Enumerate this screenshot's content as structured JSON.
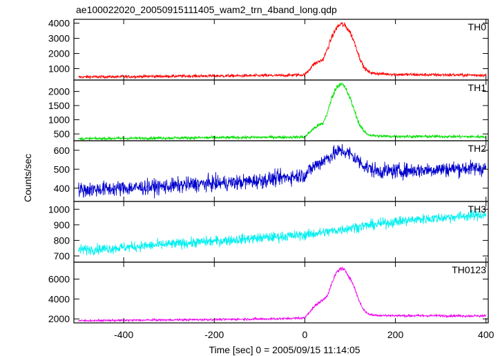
{
  "chart_data": {
    "type": "line",
    "title": "ae100022020_20050915111405_wam2_trn_4band_long.qdp",
    "xlabel": "Time [sec] 0 = 2005/09/15 11:14:05",
    "ylabel": "Counts/sec",
    "xlim": [
      -510,
      405
    ],
    "x_ticks": [
      -400,
      -200,
      0,
      200,
      400
    ],
    "grid": false,
    "panels": [
      {
        "name": "TH0",
        "color": "#ff0000",
        "ylim": [
          250,
          4250
        ],
        "y_ticks": [
          1000,
          2000,
          3000,
          4000
        ],
        "series": {
          "x": [
            -500,
            -450,
            -400,
            -350,
            -300,
            -250,
            -200,
            -150,
            -100,
            -50,
            0,
            10,
            20,
            30,
            40,
            50,
            60,
            70,
            80,
            90,
            100,
            110,
            120,
            130,
            140,
            150,
            175,
            200,
            250,
            300,
            350,
            400
          ],
          "y": [
            450,
            460,
            470,
            490,
            500,
            510,
            520,
            530,
            540,
            550,
            600,
            950,
            1300,
            1450,
            1600,
            2300,
            3100,
            3700,
            3950,
            3800,
            3400,
            2700,
            1800,
            1100,
            800,
            700,
            650,
            620,
            600,
            590,
            580,
            570
          ]
        }
      },
      {
        "name": "TH1",
        "color": "#00e000",
        "ylim": [
          260,
          2400
        ],
        "y_ticks": [
          500,
          1000,
          1500,
          2000
        ],
        "series": {
          "x": [
            -500,
            -450,
            -400,
            -350,
            -300,
            -250,
            -200,
            -150,
            -100,
            -50,
            0,
            10,
            20,
            30,
            40,
            50,
            60,
            70,
            80,
            90,
            100,
            110,
            120,
            130,
            140,
            150,
            175,
            200,
            250,
            300,
            350,
            400
          ],
          "y": [
            330,
            340,
            345,
            350,
            360,
            365,
            370,
            375,
            380,
            385,
            390,
            550,
            700,
            800,
            870,
            1250,
            1800,
            2150,
            2300,
            2100,
            1750,
            1300,
            850,
            600,
            480,
            440,
            420,
            415,
            410,
            410,
            405,
            400
          ]
        }
      },
      {
        "name": "TH2",
        "color": "#0000cc",
        "ylim": [
          330,
          650
        ],
        "y_ticks": [
          400,
          500,
          600
        ],
        "series": {
          "x": [
            -500,
            -450,
            -400,
            -350,
            -300,
            -250,
            -200,
            -150,
            -100,
            -50,
            0,
            20,
            40,
            60,
            80,
            100,
            120,
            140,
            160,
            180,
            200,
            250,
            300,
            350,
            400
          ],
          "y": [
            390,
            395,
            400,
            405,
            410,
            420,
            425,
            430,
            440,
            455,
            470,
            515,
            545,
            575,
            600,
            580,
            540,
            505,
            490,
            490,
            490,
            495,
            500,
            505,
            505
          ]
        }
      },
      {
        "name": "TH3",
        "color": "#00f0f0",
        "ylim": [
          660,
          1050
        ],
        "y_ticks": [
          700,
          800,
          900,
          1000
        ],
        "series": {
          "x": [
            -500,
            -450,
            -400,
            -350,
            -300,
            -250,
            -200,
            -150,
            -100,
            -50,
            0,
            50,
            100,
            150,
            200,
            250,
            300,
            350,
            400
          ],
          "y": [
            740,
            745,
            755,
            765,
            775,
            785,
            795,
            805,
            815,
            825,
            835,
            855,
            880,
            900,
            920,
            935,
            945,
            955,
            965
          ]
        }
      },
      {
        "name": "TH0123",
        "color": "#ee00ee",
        "ylim": [
          1600,
          7700
        ],
        "y_ticks": [
          2000,
          4000,
          6000
        ],
        "series": {
          "x": [
            -500,
            -450,
            -400,
            -350,
            -300,
            -250,
            -200,
            -150,
            -100,
            -50,
            0,
            10,
            20,
            30,
            40,
            50,
            60,
            70,
            80,
            90,
            100,
            110,
            120,
            130,
            140,
            150,
            175,
            200,
            250,
            300,
            350,
            400
          ],
          "y": [
            1820,
            1840,
            1860,
            1880,
            1900,
            1920,
            1940,
            1960,
            1990,
            2020,
            2100,
            2700,
            3200,
            3600,
            3900,
            4400,
            5600,
            6700,
            7100,
            6800,
            6100,
            5100,
            3800,
            2900,
            2500,
            2380,
            2340,
            2330,
            2320,
            2320,
            2310,
            2300
          ]
        }
      }
    ]
  }
}
